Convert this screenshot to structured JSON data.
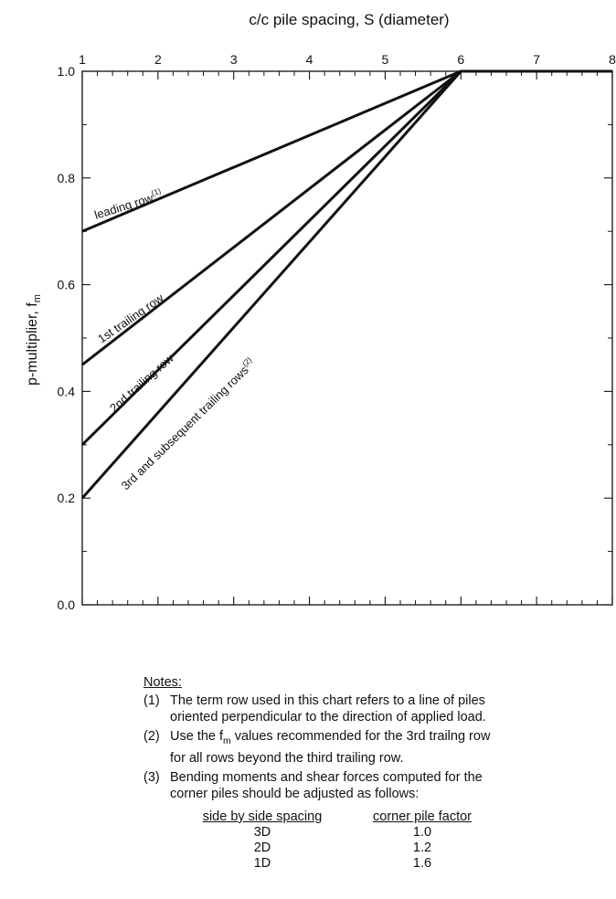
{
  "chart_data": {
    "type": "line",
    "title": "c/c pile spacing, S (diameter)",
    "xlabel": "c/c pile spacing, S (diameter)",
    "ylabel": "p-multiplier, f",
    "ylabel_sub": "m",
    "xlim": [
      1,
      8
    ],
    "ylim": [
      0,
      1.0
    ],
    "x_axis_position": "top",
    "x_ticks": [
      1,
      2,
      3,
      4,
      5,
      6,
      7,
      8
    ],
    "y_ticks": [
      0.0,
      0.2,
      0.4,
      0.6,
      0.8,
      1.0
    ],
    "y_tick_labels": [
      "0.0",
      "0.2",
      "0.4",
      "0.6",
      "0.8",
      "1.0"
    ],
    "grid": false,
    "series": [
      {
        "name": "leading row",
        "sup": "(1)",
        "x": [
          1,
          6,
          8
        ],
        "y": [
          0.7,
          1.0,
          1.0
        ]
      },
      {
        "name": "1st trailing row",
        "x": [
          1,
          6
        ],
        "y": [
          0.45,
          1.0
        ]
      },
      {
        "name": "2nd trailing row",
        "x": [
          1,
          6
        ],
        "y": [
          0.3,
          1.0
        ]
      },
      {
        "name": "3rd and subsequent trailing rows",
        "sup": "(2)",
        "x": [
          1,
          6
        ],
        "y": [
          0.2,
          1.0
        ]
      }
    ]
  },
  "notes": {
    "title": "Notes:",
    "n1": {
      "num": "(1)",
      "line1": "The term row used in this chart refers to a line of piles",
      "line2": "oriented perpendicular to the direction of applied load."
    },
    "n2": {
      "num": "(2)",
      "line1a": "Use the f",
      "line1sub": "m",
      "line1b": " values recommended for the 3rd trailng row",
      "line2": "for all rows beyond the third trailing row."
    },
    "n3": {
      "num": "(3)",
      "line1": "Bending moments and shear forces computed for the",
      "line2": "corner piles should be adjusted as follows:"
    },
    "corner_table": {
      "col1": "side by side spacing",
      "col2": "corner pile factor",
      "rows": [
        {
          "spacing": "3D",
          "factor": "1.0"
        },
        {
          "spacing": "2D",
          "factor": "1.2"
        },
        {
          "spacing": "1D",
          "factor": "1.6"
        }
      ]
    }
  }
}
